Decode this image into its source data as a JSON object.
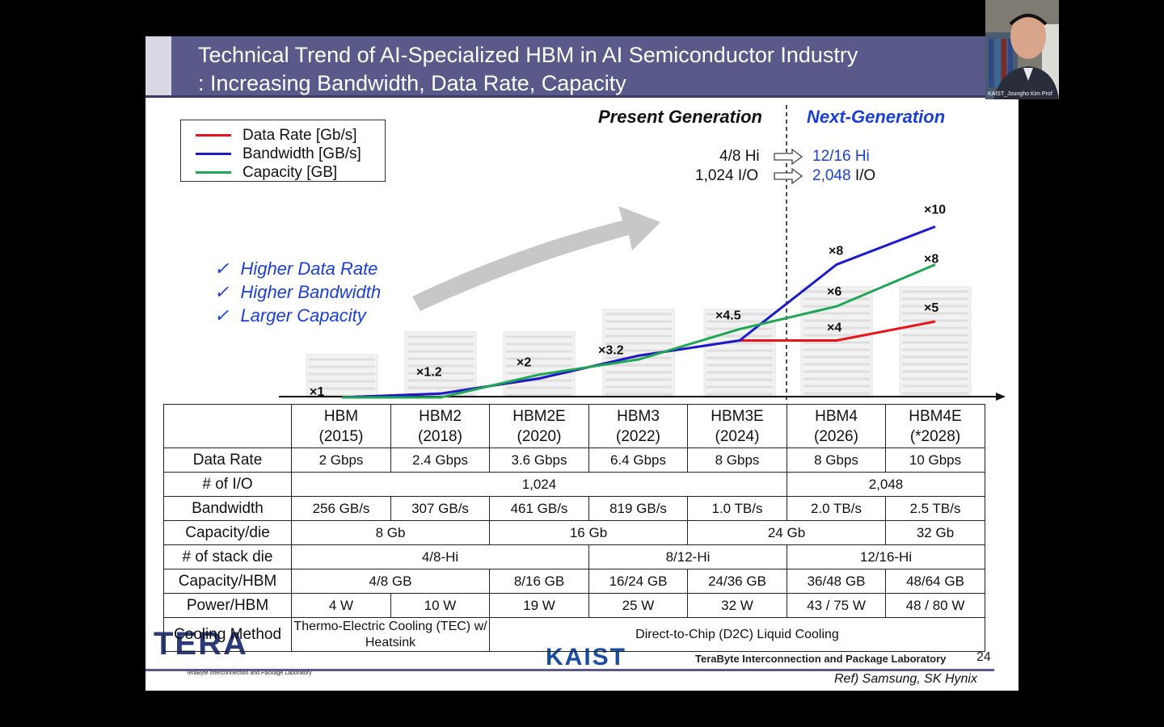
{
  "slide": {
    "title_line1": "Technical Trend of AI-Specialized HBM in AI Semiconductor Industry",
    "title_line2": ": Increasing Bandwidth, Data Rate, Capacity",
    "present_generation": "Present Generation",
    "next_generation": "Next-Generation",
    "stack_present": "4/8 Hi",
    "io_present": "1,024 I/O",
    "stack_next": "12/16 Hi",
    "io_next_value": "2,048",
    "io_next_unit": "I/O",
    "checklist": [
      "Higher Data Rate",
      "Higher Bandwidth",
      "Larger Capacity"
    ],
    "check_glyph": "✓",
    "ref": "Ref) Samsung, SK Hynix",
    "footer_lab": "TeraByte Interconnection and Package Laboratory",
    "footer_lab_small": "TeraByte Interconnection and Package Laboratory",
    "logo_tera": "TERA",
    "logo_kaist": "KAIST",
    "page_number": "24"
  },
  "chart_data": {
    "type": "line",
    "categories": [
      "HBM",
      "HBM2",
      "HBM2E",
      "HBM3",
      "HBM3E",
      "HBM4",
      "HBM4E"
    ],
    "series": [
      {
        "name": "Data Rate [Gb/s]",
        "color": "#e8141b",
        "values": [
          1,
          1.2,
          2,
          3.2,
          4,
          4,
          5
        ]
      },
      {
        "name": "Bandwidth [GB/s]",
        "color": "#1a1ad0",
        "values": [
          1,
          1.2,
          2,
          3.2,
          4,
          8,
          10
        ]
      },
      {
        "name": "Capacity [GB]",
        "color": "#1fa853",
        "values": [
          1,
          1,
          2.2,
          3,
          4.6,
          5.8,
          8
        ]
      }
    ],
    "multiplier_labels": [
      {
        "text": "×1",
        "category": "HBM"
      },
      {
        "text": "×1.2",
        "category": "HBM2"
      },
      {
        "text": "×2",
        "category": "HBM2E"
      },
      {
        "text": "×3.2",
        "category": "HBM3"
      },
      {
        "text": "×4.5",
        "category": "HBM3E"
      },
      {
        "text": "×8",
        "category": "HBM4"
      },
      {
        "text": "×6",
        "category": "HBM4"
      },
      {
        "text": "×4",
        "category": "HBM4"
      },
      {
        "text": "×10",
        "category": "HBM4E"
      },
      {
        "text": "×8",
        "category": "HBM4E"
      },
      {
        "text": "×5",
        "category": "HBM4E"
      }
    ],
    "divider_after": "HBM3E",
    "stack_heights": [
      1,
      2,
      2,
      3,
      3,
      4,
      4
    ]
  },
  "table": {
    "corner": "",
    "columns": [
      {
        "name": "HBM",
        "year": "(2015)"
      },
      {
        "name": "HBM2",
        "year": "(2018)"
      },
      {
        "name": "HBM2E",
        "year": "(2020)"
      },
      {
        "name": "HBM3",
        "year": "(2022)"
      },
      {
        "name": "HBM3E",
        "year": "(2024)"
      },
      {
        "name": "HBM4",
        "year": "(2026)"
      },
      {
        "name": "HBM4E",
        "year": "(*2028)"
      }
    ],
    "rows": [
      {
        "label": "Data Rate",
        "cells": [
          {
            "v": "2 Gbps",
            "span": 1
          },
          {
            "v": "2.4 Gbps",
            "span": 1
          },
          {
            "v": "3.6 Gbps",
            "span": 1
          },
          {
            "v": "6.4 Gbps",
            "span": 1
          },
          {
            "v": "8 Gbps",
            "span": 1
          },
          {
            "v": "8 Gbps",
            "span": 1
          },
          {
            "v": "10 Gbps",
            "span": 1
          }
        ]
      },
      {
        "label": "# of I/O",
        "cells": [
          {
            "v": "1,024",
            "span": 5
          },
          {
            "v": "2,048",
            "span": 2
          }
        ]
      },
      {
        "label": "Bandwidth",
        "cells": [
          {
            "v": "256 GB/s",
            "span": 1
          },
          {
            "v": "307 GB/s",
            "span": 1
          },
          {
            "v": "461 GB/s",
            "span": 1
          },
          {
            "v": "819 GB/s",
            "span": 1
          },
          {
            "v": "1.0 TB/s",
            "span": 1
          },
          {
            "v": "2.0 TB/s",
            "span": 1
          },
          {
            "v": "2.5 TB/s",
            "span": 1
          }
        ]
      },
      {
        "label": "Capacity/die",
        "cells": [
          {
            "v": "8 Gb",
            "span": 2
          },
          {
            "v": "16 Gb",
            "span": 2
          },
          {
            "v": "24 Gb",
            "span": 2
          },
          {
            "v": "32 Gb",
            "span": 1
          }
        ]
      },
      {
        "label": "# of stack die",
        "cells": [
          {
            "v": "4/8-Hi",
            "span": 3
          },
          {
            "v": "8/12-Hi",
            "span": 2
          },
          {
            "v": "12/16-Hi",
            "span": 2
          }
        ]
      },
      {
        "label": "Capacity/HBM",
        "cells": [
          {
            "v": "4/8 GB",
            "span": 2
          },
          {
            "v": "8/16 GB",
            "span": 1
          },
          {
            "v": "16/24 GB",
            "span": 1
          },
          {
            "v": "24/36 GB",
            "span": 1
          },
          {
            "v": "36/48 GB",
            "span": 1
          },
          {
            "v": "48/64 GB",
            "span": 1
          }
        ]
      },
      {
        "label": "Power/HBM",
        "cells": [
          {
            "v": "4 W",
            "span": 1
          },
          {
            "v": "10 W",
            "span": 1
          },
          {
            "v": "19 W",
            "span": 1
          },
          {
            "v": "25 W",
            "span": 1
          },
          {
            "v": "32 W",
            "span": 1
          },
          {
            "v": "43 / 75 W",
            "span": 1
          },
          {
            "v": "48 / 80 W",
            "span": 1
          }
        ]
      },
      {
        "label": "Cooling Method",
        "cells": [
          {
            "v": "Thermo-Electric Cooling (TEC) w/ Heatsink",
            "span": 2
          },
          {
            "v": "Direct-to-Chip (D2C) Liquid Cooling",
            "span": 5
          }
        ]
      }
    ]
  },
  "webcam": {
    "label": "KAIST_Joungho Kim Prof"
  }
}
